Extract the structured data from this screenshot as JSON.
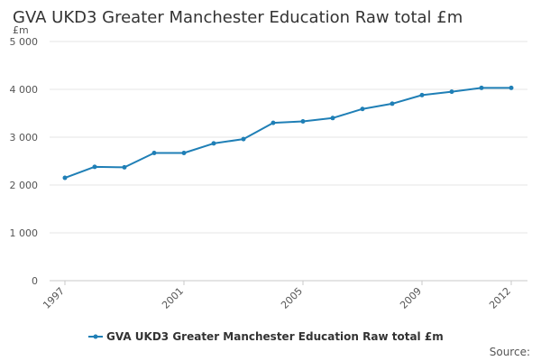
{
  "chart_data": {
    "type": "line",
    "title": "GVA UKD3 Greater Manchester Education Raw total £m",
    "ylabel": "£m",
    "xlabel": "",
    "x": [
      1997,
      1998,
      1999,
      2000,
      2001,
      2002,
      2003,
      2004,
      2005,
      2006,
      2007,
      2008,
      2009,
      2010,
      2011,
      2012
    ],
    "x_tick_labels": [
      "1997",
      "2001",
      "2005",
      "2009",
      "2012"
    ],
    "y_tick_labels": [
      "0",
      "1 000",
      "2 000",
      "3 000",
      "4 000",
      "5 000"
    ],
    "ylim": [
      0,
      5000
    ],
    "grid": true,
    "legend_position": "bottom",
    "series": [
      {
        "name": "GVA UKD3 Greater Manchester Education Raw total £m",
        "color": "#1f7fb6",
        "values": [
          2150,
          2380,
          2370,
          2670,
          2670,
          2870,
          2960,
          3300,
          3330,
          3400,
          3590,
          3700,
          3880,
          3950,
          4030,
          4030
        ]
      }
    ],
    "source_label": "Source:"
  }
}
